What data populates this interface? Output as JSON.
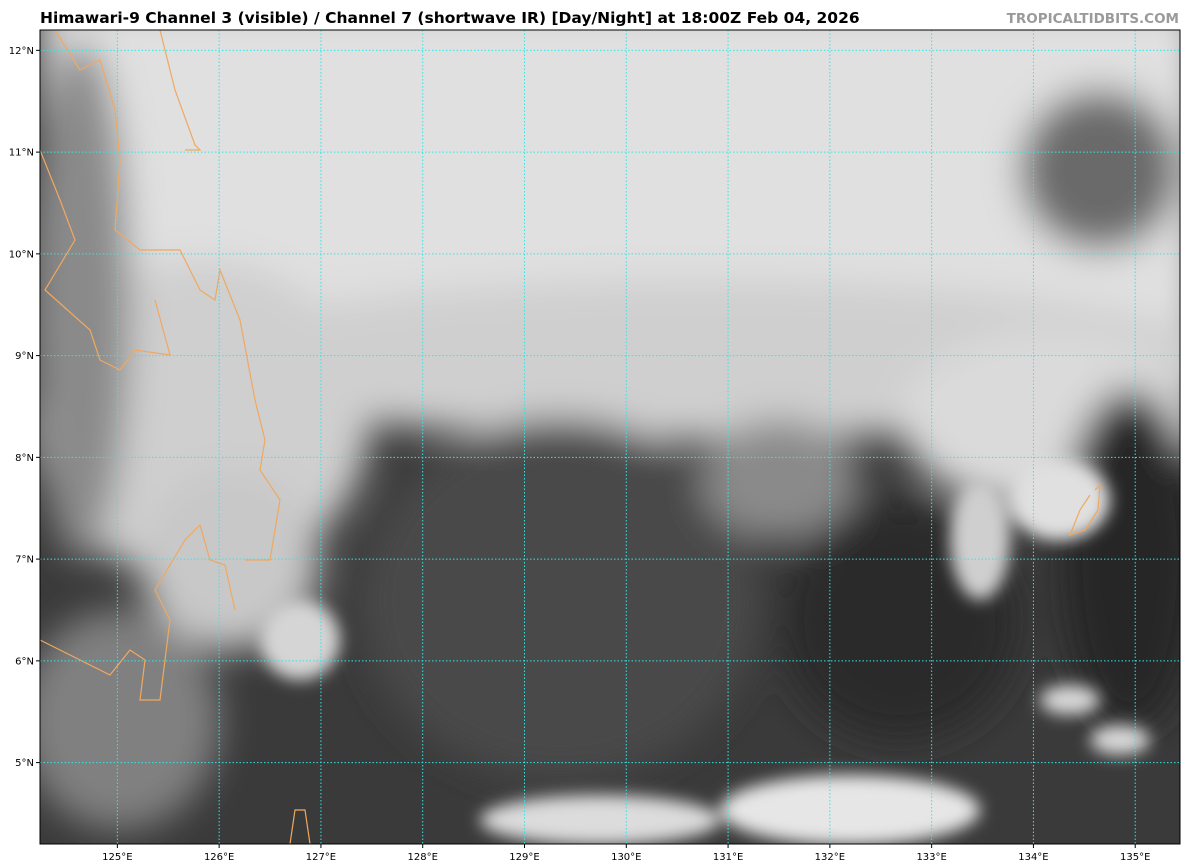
{
  "header": {
    "title": "Himawari-9 Channel 3 (visible) / Channel 7 (shortwave IR) [Day/Night] at 18:00Z Feb 04, 2026",
    "brand": "TROPICALTIDBITS.COM"
  },
  "map": {
    "extent_deg": {
      "lon_min": 124.24,
      "lon_max": 135.44,
      "lat_min": 4.2,
      "lat_max": 12.2
    },
    "longitudes": [
      {
        "value": 125,
        "label": "125°E"
      },
      {
        "value": 126,
        "label": "126°E"
      },
      {
        "value": 127,
        "label": "127°E"
      },
      {
        "value": 128,
        "label": "128°E"
      },
      {
        "value": 129,
        "label": "129°E"
      },
      {
        "value": 130,
        "label": "130°E"
      },
      {
        "value": 131,
        "label": "131°E"
      },
      {
        "value": 132,
        "label": "132°E"
      },
      {
        "value": 133,
        "label": "133°E"
      },
      {
        "value": 134,
        "label": "134°E"
      },
      {
        "value": 135,
        "label": "135°E"
      }
    ],
    "latitudes": [
      {
        "value": 12,
        "label": "12°N"
      },
      {
        "value": 11,
        "label": "11°N"
      },
      {
        "value": 10,
        "label": "10°N"
      },
      {
        "value": 9,
        "label": "9°N"
      },
      {
        "value": 8,
        "label": "8°N"
      },
      {
        "value": 7,
        "label": "7°N"
      },
      {
        "value": 6,
        "label": "6°N"
      },
      {
        "value": 5,
        "label": "5°N"
      }
    ],
    "colors": {
      "gridline": "#33e6e6",
      "coastline": "#f0a860",
      "cloud": "#e2e2e2",
      "clear_ocean": "#2e2e2e"
    }
  }
}
